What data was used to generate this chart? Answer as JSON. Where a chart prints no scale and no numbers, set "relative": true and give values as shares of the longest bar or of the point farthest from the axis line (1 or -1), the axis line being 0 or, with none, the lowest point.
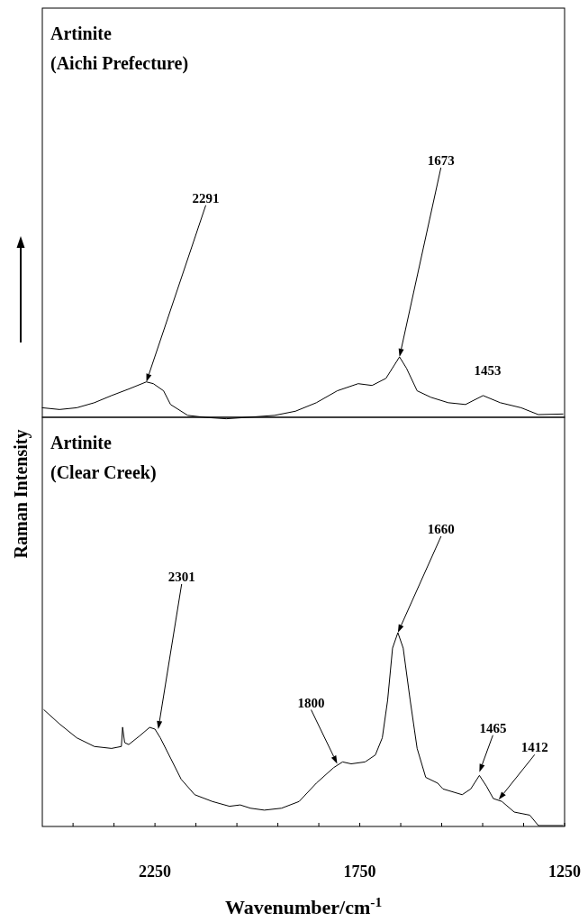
{
  "chart_data": [
    {
      "type": "line",
      "title": "Artinite",
      "subtitle": "(Aichi Prefecture)",
      "relative": true,
      "xlim": [
        2525,
        1250
      ],
      "tick_labels": false,
      "series": [
        {
          "color": "#000000",
          "x": [
            2525,
            2483,
            2441,
            2398,
            2356,
            2314,
            2271,
            2254,
            2229,
            2212,
            2170,
            2127,
            2076,
            2026,
            1958,
            1907,
            1856,
            1805,
            1754,
            1720,
            1686,
            1653,
            1636,
            1610,
            1576,
            1534,
            1492,
            1449,
            1407,
            1356,
            1314,
            1254
          ],
          "values": [
            0.145,
            0.116,
            0.145,
            0.23,
            0.35,
            0.46,
            0.58,
            0.55,
            0.43,
            0.2,
            0.017,
            -0.017,
            -0.04,
            -0.017,
            0.017,
            0.087,
            0.23,
            0.43,
            0.55,
            0.52,
            0.64,
            1.0,
            0.81,
            0.43,
            0.32,
            0.23,
            0.2,
            0.35,
            0.23,
            0.145,
            0.03,
            0.04
          ]
        }
      ],
      "annotations": [
        {
          "text": "2291",
          "x": 2271,
          "y": 0.58
        },
        {
          "text": "1673",
          "x": 1653,
          "y": 1.0
        },
        {
          "text": "1453",
          "x": 1449,
          "y": 0.35
        }
      ]
    },
    {
      "type": "line",
      "title": "Artinite",
      "subtitle": "(Clear Creek)",
      "relative": true,
      "xlim": [
        2525,
        1250
      ],
      "tick_labels": "x",
      "xlabel": "Wavenumber/cm$^{-1}$",
      "ylabel": "Raman Intensity",
      "xticks": [
        {
          "value": 2450,
          "label": null
        },
        {
          "value": 2350,
          "label": null
        },
        2250,
        {
          "value": 2150,
          "label": null
        },
        {
          "value": 2050,
          "label": null
        },
        {
          "value": 1950,
          "label": null
        },
        {
          "value": 1850,
          "label": null
        },
        1750,
        {
          "value": 1650,
          "label": null
        },
        {
          "value": 1550,
          "label": null
        },
        {
          "value": 1450,
          "label": null
        },
        {
          "value": 1350,
          "label": null
        },
        1250
      ],
      "series": [
        {
          "color": "#000000",
          "x": [
            2521,
            2483,
            2441,
            2398,
            2356,
            2332,
            2329,
            2324,
            2314,
            2288,
            2263,
            2250,
            2237,
            2212,
            2186,
            2153,
            2110,
            2068,
            2042,
            2017,
            1983,
            1941,
            1898,
            1856,
            1814,
            1792,
            1771,
            1737,
            1712,
            1695,
            1682,
            1670,
            1657,
            1644,
            1627,
            1610,
            1589,
            1560,
            1547,
            1500,
            1479,
            1458,
            1441,
            1424,
            1403,
            1373,
            1335,
            1314,
            1254
          ],
          "values": [
            0.6,
            0.527,
            0.455,
            0.41,
            0.4,
            0.41,
            0.51,
            0.43,
            0.42,
            0.464,
            0.509,
            0.5,
            0.455,
            0.35,
            0.24,
            0.16,
            0.125,
            0.1,
            0.107,
            0.09,
            0.08,
            0.09,
            0.125,
            0.22,
            0.3,
            0.33,
            0.32,
            0.33,
            0.366,
            0.455,
            0.65,
            0.92,
            1.0,
            0.92,
            0.65,
            0.4,
            0.25,
            0.22,
            0.19,
            0.16,
            0.19,
            0.26,
            0.205,
            0.14,
            0.125,
            0.07,
            0.054,
            0,
            0
          ]
        }
      ],
      "annotations": [
        {
          "text": "2301",
          "x": 2242,
          "y": 0.5
        },
        {
          "text": "1800",
          "x": 1805,
          "y": 0.32
        },
        {
          "text": "1660",
          "x": 1657,
          "y": 1.0
        },
        {
          "text": "1465",
          "x": 1458,
          "y": 0.277
        },
        {
          "text": "1412",
          "x": 1411,
          "y": 0.134
        }
      ]
    }
  ]
}
